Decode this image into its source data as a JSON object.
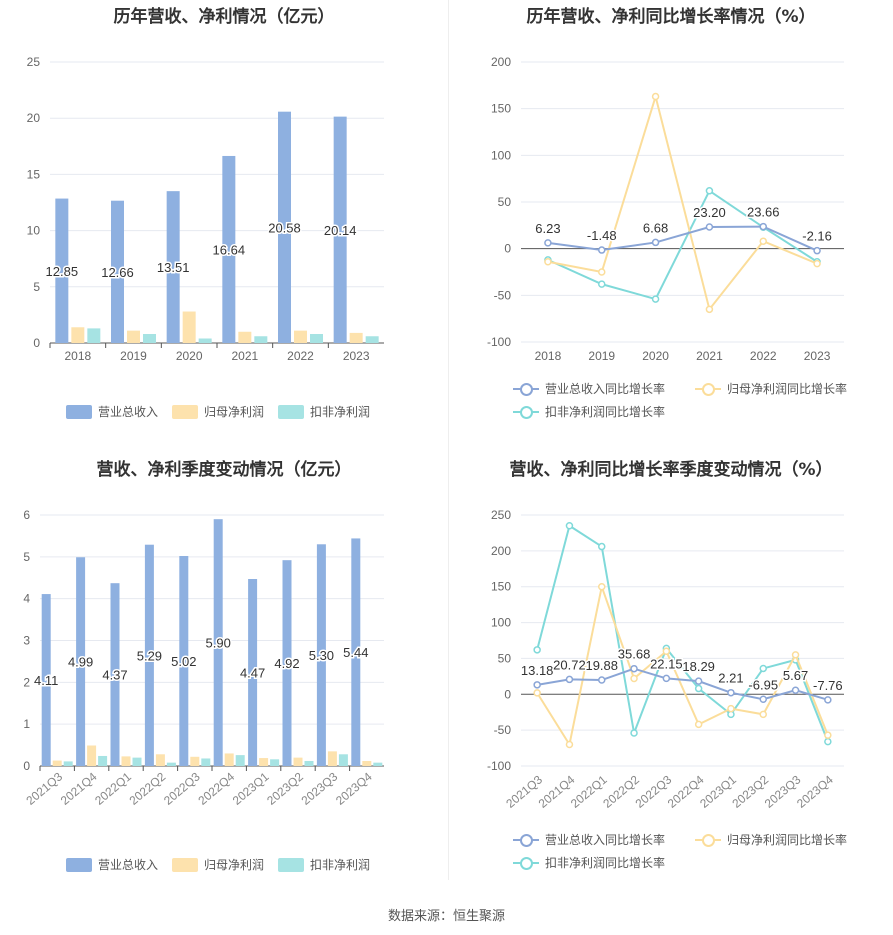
{
  "footer": "数据来源：恒生聚源",
  "colors": {
    "revenue": "#8eb0e0",
    "netprofit": "#fde2ad",
    "deducted": "#a6e3e3",
    "rev_line": "#8aa5d6",
    "np_line": "#fbdd9a",
    "dd_line": "#7fd9d9"
  },
  "legend": {
    "bar": [
      "营业总收入",
      "归母净利润",
      "扣非净利润"
    ],
    "line": [
      "营业总收入同比增长率",
      "归母净利润同比增长率",
      "扣非净利润同比增长率"
    ]
  },
  "chart_data": [
    {
      "type": "bar",
      "title": "历年营收、净利情况（亿元）",
      "categories": [
        "2018",
        "2019",
        "2020",
        "2021",
        "2022",
        "2023"
      ],
      "ylim": [
        0,
        25
      ],
      "yticks": [
        0,
        5,
        10,
        15,
        20,
        25
      ],
      "series": [
        {
          "name": "营业总收入",
          "values": [
            12.85,
            12.66,
            13.51,
            16.64,
            20.58,
            20.14
          ],
          "labels": [
            "12.85",
            "12.66",
            "13.51",
            "16.64",
            "20.58",
            "20.14"
          ]
        },
        {
          "name": "归母净利润",
          "values": [
            1.4,
            1.1,
            2.8,
            1.0,
            1.1,
            0.9
          ]
        },
        {
          "name": "扣非净利润",
          "values": [
            1.3,
            0.8,
            0.4,
            0.6,
            0.8,
            0.6
          ]
        }
      ],
      "legend": "bottom"
    },
    {
      "type": "line",
      "title": "历年营收、净利同比增长率情况（%）",
      "categories": [
        "2018",
        "2019",
        "2020",
        "2021",
        "2022",
        "2023"
      ],
      "ylim": [
        -100,
        200
      ],
      "yticks": [
        -100,
        -50,
        0,
        50,
        100,
        150,
        200
      ],
      "series": [
        {
          "name": "营业总收入同比增长率",
          "values": [
            6.23,
            -1.48,
            6.68,
            23.2,
            23.66,
            -2.16
          ],
          "labels": [
            "6.23",
            "-1.48",
            "6.68",
            "23.20",
            "23.66",
            "-2.16"
          ]
        },
        {
          "name": "归母净利润同比增长率",
          "values": [
            -14,
            -25,
            163,
            -65,
            8,
            -16
          ]
        },
        {
          "name": "扣非净利润同比增长率",
          "values": [
            -12,
            -38,
            -54,
            62,
            23,
            -14
          ]
        }
      ],
      "legend": "bottom"
    },
    {
      "type": "bar",
      "title": "营收、净利季度变动情况（亿元）",
      "categories": [
        "2021Q3",
        "2021Q4",
        "2022Q1",
        "2022Q2",
        "2022Q3",
        "2022Q4",
        "2023Q1",
        "2023Q2",
        "2023Q3",
        "2023Q4"
      ],
      "ylim": [
        0,
        6
      ],
      "yticks": [
        0,
        1,
        2,
        3,
        4,
        5,
        6
      ],
      "series": [
        {
          "name": "营业总收入",
          "values": [
            4.11,
            4.99,
            4.37,
            5.29,
            5.02,
            5.9,
            4.47,
            4.92,
            5.3,
            5.44
          ],
          "labels": [
            "4.11",
            "4.99",
            "4.37",
            "5.29",
            "5.02",
            "5.90",
            "4.47",
            "4.92",
            "5.30",
            "5.44"
          ]
        },
        {
          "name": "归母净利润",
          "values": [
            0.13,
            0.49,
            0.23,
            0.28,
            0.22,
            0.3,
            0.19,
            0.2,
            0.35,
            0.12
          ]
        },
        {
          "name": "扣非净利润",
          "values": [
            0.11,
            0.24,
            0.2,
            0.08,
            0.18,
            0.26,
            0.16,
            0.12,
            0.28,
            0.08
          ]
        }
      ],
      "legend": "bottom"
    },
    {
      "type": "line",
      "title": "营收、净利同比增长率季度变动情况（%）",
      "categories": [
        "2021Q3",
        "2021Q4",
        "2022Q1",
        "2022Q2",
        "2022Q3",
        "2022Q4",
        "2023Q1",
        "2023Q2",
        "2023Q3",
        "2023Q4"
      ],
      "ylim": [
        -100,
        250
      ],
      "yticks": [
        -100,
        -50,
        0,
        50,
        100,
        150,
        200,
        250
      ],
      "series": [
        {
          "name": "营业总收入同比增长率",
          "values": [
            13.18,
            20.72,
            19.88,
            35.68,
            22.15,
            18.29,
            2.21,
            -6.95,
            5.67,
            -7.76
          ],
          "labels": [
            "13.18",
            "20.72",
            "19.88",
            "35.68",
            "22.15",
            "18.29",
            "2.21",
            "-6.95",
            "5.67",
            "-7.76"
          ]
        },
        {
          "name": "归母净利润同比增长率",
          "values": [
            2,
            -70,
            150,
            22,
            60,
            -42,
            -20,
            -28,
            55,
            -57
          ]
        },
        {
          "name": "扣非净利润同比增长率",
          "values": [
            62,
            235,
            206,
            -54,
            64,
            8,
            -28,
            36,
            48,
            -66
          ]
        }
      ],
      "legend": "bottom"
    }
  ]
}
